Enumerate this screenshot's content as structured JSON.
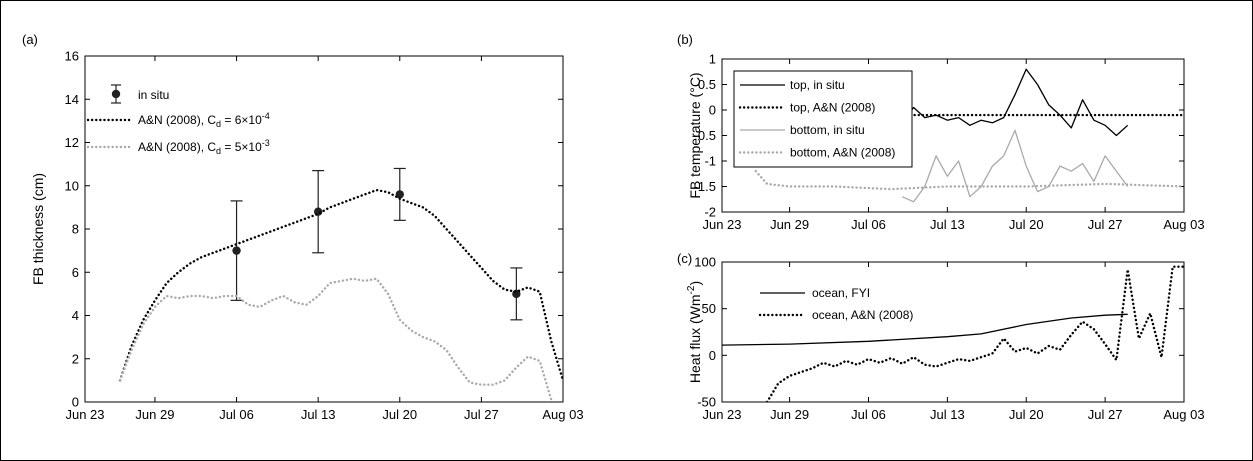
{
  "chart_data": [
    {
      "panel_label": "(a)",
      "type": "line",
      "ylabel": "FB thickness (cm)",
      "xlim": [
        "Jun 23",
        "Aug 03"
      ],
      "ylim": [
        0,
        16
      ],
      "xticks": [
        "Jun 23",
        "Jun 29",
        "Jul 06",
        "Jul 13",
        "Jul 20",
        "Jul 27",
        "Aug 03"
      ],
      "yticks": [
        "0",
        "2",
        "4",
        "6",
        "8",
        "10",
        "12",
        "14",
        "16"
      ],
      "legend_position": "top-left",
      "legend": [
        {
          "label": "in situ"
        },
        {
          "label": "A&N (2008), C",
          "sub": "d",
          "rest": " = 6×10",
          "sup": "-4"
        },
        {
          "label": "A&N (2008), C",
          "sub": "d",
          "rest": " = 5×10",
          "sup": "-3"
        }
      ],
      "series": [
        {
          "name": "in situ",
          "color": "#222222",
          "style": "points-with-errorbars",
          "x": [
            "Jul 06",
            "Jul 13",
            "Jul 20",
            "Jul 30"
          ],
          "values": [
            7.0,
            8.8,
            9.6,
            5.0
          ],
          "err_low": [
            4.7,
            6.9,
            8.4,
            3.8
          ],
          "err_high": [
            9.3,
            10.7,
            10.8,
            6.2
          ]
        },
        {
          "name": "A&N (2008), Cd = 6×10-4",
          "color": "#000000",
          "style": "dotted",
          "x": [
            "Jun 26",
            "Jun 27",
            "Jun 28",
            "Jun 29",
            "Jun 30",
            "Jul 01",
            "Jul 02",
            "Jul 03",
            "Jul 04",
            "Jul 05",
            "Jul 06",
            "Jul 07",
            "Jul 08",
            "Jul 09",
            "Jul 10",
            "Jul 11",
            "Jul 12",
            "Jul 13",
            "Jul 14",
            "Jul 15",
            "Jul 16",
            "Jul 17",
            "Jul 18",
            "Jul 19",
            "Jul 20",
            "Jul 21",
            "Jul 22",
            "Jul 23",
            "Jul 24",
            "Jul 25",
            "Jul 26",
            "Jul 27",
            "Jul 28",
            "Jul 29",
            "Jul 30",
            "Jul 31",
            "Aug 01",
            "Aug 02",
            "Aug 03"
          ],
          "values": [
            1.0,
            2.6,
            3.8,
            4.7,
            5.5,
            6.0,
            6.4,
            6.7,
            6.9,
            7.1,
            7.3,
            7.5,
            7.7,
            7.9,
            8.1,
            8.3,
            8.5,
            8.7,
            9.0,
            9.2,
            9.4,
            9.6,
            9.8,
            9.7,
            9.4,
            9.2,
            9.0,
            8.6,
            8.0,
            7.4,
            6.8,
            6.2,
            5.6,
            5.2,
            5.1,
            5.3,
            5.1,
            2.8,
            1.0
          ]
        },
        {
          "name": "A&N (2008), Cd = 5×10-3",
          "color": "#aaaaaa",
          "style": "dotted",
          "x": [
            "Jun 26",
            "Jun 27",
            "Jun 28",
            "Jun 29",
            "Jun 30",
            "Jul 01",
            "Jul 02",
            "Jul 03",
            "Jul 04",
            "Jul 05",
            "Jul 06",
            "Jul 07",
            "Jul 08",
            "Jul 09",
            "Jul 10",
            "Jul 11",
            "Jul 12",
            "Jul 13",
            "Jul 14",
            "Jul 15",
            "Jul 16",
            "Jul 17",
            "Jul 18",
            "Jul 19",
            "Jul 20",
            "Jul 21",
            "Jul 22",
            "Jul 23",
            "Jul 24",
            "Jul 25",
            "Jul 26",
            "Jul 27",
            "Jul 28",
            "Jul 29",
            "Jul 30",
            "Jul 31",
            "Aug 01",
            "Aug 02"
          ],
          "values": [
            1.0,
            2.4,
            3.6,
            4.4,
            4.9,
            4.8,
            4.9,
            4.9,
            4.8,
            4.9,
            4.9,
            4.5,
            4.4,
            4.7,
            4.9,
            4.6,
            4.5,
            4.9,
            5.5,
            5.6,
            5.7,
            5.6,
            5.7,
            5.0,
            3.8,
            3.3,
            3.0,
            2.8,
            2.4,
            1.6,
            0.9,
            0.8,
            0.8,
            1.0,
            1.6,
            2.1,
            1.9,
            0.1
          ]
        }
      ]
    },
    {
      "panel_label": "(b)",
      "type": "line",
      "ylabel": "FB temperature (°C)",
      "xlim": [
        "Jun 23",
        "Aug 03"
      ],
      "ylim": [
        -2,
        1
      ],
      "xticks": [
        "Jun 23",
        "Jun 29",
        "Jul 06",
        "Jul 13",
        "Jul 20",
        "Jul 27",
        "Aug 03"
      ],
      "yticks": [
        "-2",
        "-1.5",
        "-1",
        "-0.5",
        "0",
        "0.5",
        "1"
      ],
      "legend_position": "top-left",
      "series": [
        {
          "name": "top, in situ",
          "color": "#000000",
          "style": "solid",
          "x": [
            "Jul 09",
            "Jul 10",
            "Jul 11",
            "Jul 12",
            "Jul 13",
            "Jul 14",
            "Jul 15",
            "Jul 16",
            "Jul 17",
            "Jul 18",
            "Jul 19",
            "Jul 20",
            "Jul 21",
            "Jul 22",
            "Jul 23",
            "Jul 24",
            "Jul 25",
            "Jul 26",
            "Jul 27",
            "Jul 28",
            "Jul 29"
          ],
          "values": [
            -0.25,
            0.05,
            -0.15,
            -0.1,
            -0.2,
            -0.15,
            -0.3,
            -0.2,
            -0.25,
            -0.15,
            0.3,
            0.8,
            0.5,
            0.1,
            -0.1,
            -0.35,
            0.2,
            -0.2,
            -0.3,
            -0.5,
            -0.3
          ]
        },
        {
          "name": "top, A&N (2008)",
          "color": "#000000",
          "style": "dotted",
          "x": [
            "Jul 09",
            "Aug 03"
          ],
          "values": [
            -0.1,
            -0.1
          ]
        },
        {
          "name": "bottom, in situ",
          "color": "#aaaaaa",
          "style": "solid",
          "x": [
            "Jul 09",
            "Jul 10",
            "Jul 11",
            "Jul 12",
            "Jul 13",
            "Jul 14",
            "Jul 15",
            "Jul 16",
            "Jul 17",
            "Jul 18",
            "Jul 19",
            "Jul 20",
            "Jul 21",
            "Jul 22",
            "Jul 23",
            "Jul 24",
            "Jul 25",
            "Jul 26",
            "Jul 27",
            "Jul 28",
            "Jul 29"
          ],
          "values": [
            -1.7,
            -1.8,
            -1.5,
            -0.9,
            -1.3,
            -1.0,
            -1.7,
            -1.5,
            -1.1,
            -0.9,
            -0.4,
            -1.1,
            -1.6,
            -1.5,
            -1.1,
            -1.2,
            -1.05,
            -1.4,
            -0.9,
            -1.2,
            -1.5
          ]
        },
        {
          "name": "bottom, A&N (2008)",
          "color": "#aaaaaa",
          "style": "dotted",
          "x": [
            "Jun 26",
            "Jun 27",
            "Jun 29",
            "Jul 03",
            "Jul 08",
            "Jul 13",
            "Jul 20",
            "Jul 27",
            "Aug 03"
          ],
          "values": [
            -1.2,
            -1.45,
            -1.5,
            -1.5,
            -1.55,
            -1.5,
            -1.5,
            -1.45,
            -1.5
          ]
        }
      ]
    },
    {
      "panel_label": "(c)",
      "type": "line",
      "ylabel": "Heat flux (Wm-2)",
      "ylabel_base": "Heat flux (Wm",
      "ylabel_sup": "-2",
      "ylabel_end": ")",
      "xlim": [
        "Jun 23",
        "Aug 03"
      ],
      "ylim": [
        -50,
        100
      ],
      "xticks": [
        "Jun 23",
        "Jun 29",
        "Jul 06",
        "Jul 13",
        "Jul 20",
        "Jul 27",
        "Aug 03"
      ],
      "yticks": [
        "-50",
        "0",
        "50",
        "100"
      ],
      "legend_position": "top-left",
      "series": [
        {
          "name": "ocean, FYI",
          "color": "#000000",
          "style": "solid",
          "x": [
            "Jun 23",
            "Jun 29",
            "Jul 06",
            "Jul 13",
            "Jul 16",
            "Jul 20",
            "Jul 24",
            "Jul 27",
            "Jul 29"
          ],
          "values": [
            11,
            12,
            15,
            20,
            23,
            33,
            40,
            43,
            44
          ]
        },
        {
          "name": "ocean, A&N (2008)",
          "color": "#000000",
          "style": "dotted",
          "x": [
            "Jun 27",
            "Jun 28",
            "Jun 29",
            "Jun 30",
            "Jul 01",
            "Jul 02",
            "Jul 03",
            "Jul 04",
            "Jul 05",
            "Jul 06",
            "Jul 07",
            "Jul 08",
            "Jul 09",
            "Jul 10",
            "Jul 11",
            "Jul 12",
            "Jul 13",
            "Jul 14",
            "Jul 15",
            "Jul 16",
            "Jul 17",
            "Jul 18",
            "Jul 19",
            "Jul 20",
            "Jul 21",
            "Jul 22",
            "Jul 23",
            "Jul 24",
            "Jul 25",
            "Jul 26",
            "Jul 27",
            "Jul 28",
            "Jul 29",
            "Jul 30",
            "Jul 31",
            "Aug 01",
            "Aug 02",
            "Aug 03"
          ],
          "values": [
            -50,
            -30,
            -22,
            -18,
            -14,
            -8,
            -12,
            -6,
            -10,
            -4,
            -8,
            -3,
            -9,
            -2,
            -10,
            -12,
            -8,
            -4,
            -6,
            -2,
            2,
            18,
            4,
            8,
            2,
            10,
            6,
            22,
            36,
            28,
            12,
            -5,
            92,
            18,
            45,
            -2,
            95,
            95
          ]
        }
      ]
    }
  ]
}
